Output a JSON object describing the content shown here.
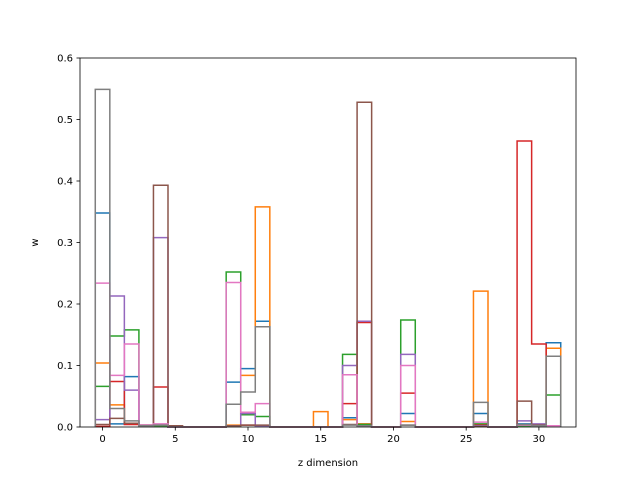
{
  "chart_data": {
    "type": "step",
    "xlabel": "z dimension",
    "ylabel": "w",
    "xlim": [
      -1.55,
      32.55
    ],
    "ylim": [
      0,
      0.6
    ],
    "xticks": [
      0,
      5,
      10,
      15,
      20,
      25,
      30
    ],
    "yticks": [
      0.0,
      0.1,
      0.2,
      0.3,
      0.4,
      0.5,
      0.6
    ],
    "xtick_labels": [
      "0",
      "5",
      "10",
      "15",
      "20",
      "25",
      "30"
    ],
    "ytick_labels": [
      "0.0",
      "0.1",
      "0.2",
      "0.3",
      "0.4",
      "0.5",
      "0.6"
    ],
    "grid": false,
    "legend": false,
    "x": [
      0,
      1,
      2,
      3,
      4,
      5,
      6,
      7,
      8,
      9,
      10,
      11,
      12,
      13,
      14,
      15,
      16,
      17,
      18,
      19,
      20,
      21,
      22,
      23,
      24,
      25,
      26,
      27,
      28,
      29,
      30,
      31
    ],
    "series": [
      {
        "color": "#1f77b4",
        "values": [
          0.348,
          0.005,
          0.082,
          0.002,
          0.003,
          0,
          0,
          0,
          0,
          0.073,
          0.095,
          0.172,
          0,
          0,
          0,
          0,
          0,
          0.015,
          0.005,
          0,
          0,
          0.022,
          0,
          0,
          0,
          0,
          0.022,
          0,
          0,
          0.005,
          0.003,
          0.137
        ]
      },
      {
        "color": "#ff7f0e",
        "values": [
          0.104,
          0.036,
          0.006,
          0.002,
          0.003,
          0,
          0,
          0,
          0,
          0.003,
          0.084,
          0.358,
          0,
          0,
          0,
          0.025,
          0,
          0.012,
          0.005,
          0,
          0,
          0.009,
          0,
          0,
          0,
          0,
          0.221,
          0,
          0,
          0.002,
          0.003,
          0.128
        ]
      },
      {
        "color": "#2ca02c",
        "values": [
          0.066,
          0.148,
          0.158,
          0.003,
          0.002,
          0,
          0,
          0,
          0,
          0.252,
          0.02,
          0.017,
          0,
          0,
          0,
          0,
          0,
          0.118,
          0.004,
          0,
          0,
          0.174,
          0,
          0,
          0,
          0,
          0.005,
          0,
          0,
          0.002,
          0.002,
          0.052
        ]
      },
      {
        "color": "#d62728",
        "values": [
          0.001,
          0.074,
          0.004,
          0.003,
          0.065,
          0,
          0,
          0,
          0,
          0.002,
          0.003,
          0.002,
          0,
          0,
          0,
          0,
          0,
          0.038,
          0.17,
          0,
          0,
          0.055,
          0,
          0,
          0,
          0,
          0.003,
          0,
          0,
          0.465,
          0.135,
          0.002
        ]
      },
      {
        "color": "#9467bd",
        "values": [
          0.012,
          0.213,
          0.06,
          0.003,
          0.308,
          0,
          0,
          0,
          0,
          0.002,
          0.022,
          0.002,
          0,
          0,
          0,
          0,
          0,
          0.1,
          0.172,
          0,
          0,
          0.118,
          0,
          0,
          0,
          0,
          0.002,
          0,
          0,
          0.01,
          0.005,
          0.002
        ]
      },
      {
        "color": "#8c564b",
        "values": [
          0.004,
          0.014,
          0.006,
          0.002,
          0.393,
          0.002,
          0,
          0,
          0,
          0.002,
          0.003,
          0.003,
          0,
          0,
          0,
          0,
          0,
          0.004,
          0.528,
          0,
          0,
          0.003,
          0,
          0,
          0,
          0,
          0.001,
          0,
          0,
          0.042,
          0.003,
          0.002
        ]
      },
      {
        "color": "#e377c2",
        "values": [
          0.234,
          0.084,
          0.135,
          0.003,
          0.005,
          0,
          0,
          0,
          0,
          0.235,
          0.024,
          0.038,
          0,
          0,
          0,
          0,
          0,
          0.085,
          0.002,
          0,
          0,
          0.1,
          0,
          0,
          0,
          0,
          0.008,
          0,
          0,
          0.003,
          0.002,
          0.002
        ]
      },
      {
        "color": "#7f7f7f",
        "values": [
          0.549,
          0.03,
          0.01,
          0.002,
          0.003,
          0,
          0,
          0,
          0,
          0.037,
          0.057,
          0.163,
          0,
          0,
          0,
          0,
          0,
          0.003,
          0.002,
          0,
          0,
          0.003,
          0,
          0,
          0,
          0,
          0.04,
          0,
          0,
          0.004,
          0.002,
          0.115
        ]
      }
    ]
  }
}
